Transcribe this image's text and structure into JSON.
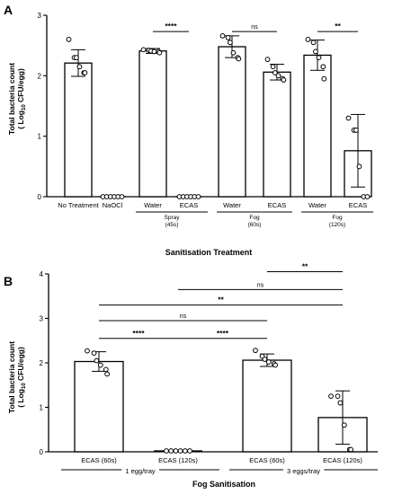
{
  "panels": [
    {
      "letter": "A",
      "ylabel_line1": "Total bacteria count",
      "ylabel_line2": "( Log",
      "ylabel_sub": "10",
      "ylabel_line2b": " CFU/egg)",
      "xlabel": "Sanitisation Treatment",
      "groups": [
        {
          "label": "Spray",
          "sub": "(45s)"
        },
        {
          "label": "Fog",
          "sub": "(60s)"
        },
        {
          "label": "Fog",
          "sub": "(120s)"
        }
      ]
    },
    {
      "letter": "B",
      "ylabel_line1": "Total bacteria count",
      "ylabel_line2": "( Log",
      "ylabel_sub": "10",
      "ylabel_line2b": " CFU/egg)",
      "xlabel": "Fog Sanitisation",
      "groups": [
        {
          "label": "1 egg/tray"
        },
        {
          "label": "3 eggs/tray"
        }
      ]
    }
  ],
  "chart_data": [
    {
      "type": "bar",
      "title": "",
      "xlabel": "Sanitisation Treatment",
      "ylabel": "Total bacteria count ( Log10 CFU/egg)",
      "ylim": [
        0,
        3
      ],
      "yticks": [
        "0",
        "1",
        "2",
        "3"
      ],
      "grid": false,
      "categories": [
        "No Treatment",
        "NaOCl",
        "Water",
        "ECAS",
        "Water",
        "ECAS",
        "Water",
        "ECAS"
      ],
      "values": [
        2.21,
        0.0,
        2.41,
        0.0,
        2.48,
        2.06,
        2.34,
        0.76
      ],
      "errors": [
        0.22,
        0.0,
        0.04,
        0.0,
        0.18,
        0.13,
        0.25,
        0.6
      ],
      "points": [
        [
          2.6,
          2.3,
          2.3,
          2.15,
          2.05,
          2.05
        ],
        [
          0,
          0,
          0,
          0,
          0,
          0
        ],
        [
          2.43,
          2.42,
          2.41,
          2.4,
          2.4,
          2.38
        ],
        [
          0,
          0,
          0,
          0,
          0,
          0
        ],
        [
          2.66,
          2.63,
          2.55,
          2.38,
          2.3,
          2.28
        ],
        [
          2.27,
          2.15,
          2.05,
          2.0,
          1.95,
          1.93
        ],
        [
          2.6,
          2.55,
          2.4,
          2.3,
          2.15,
          1.95
        ],
        [
          1.3,
          1.1,
          1.1,
          0.5,
          0.0,
          0.0
        ]
      ],
      "brackets": [
        {
          "from": 2,
          "to": 3,
          "y": 2.73,
          "label": "****"
        },
        {
          "from": 4,
          "to": 5,
          "y": 2.73,
          "label": "ns"
        },
        {
          "from": 6,
          "to": 7,
          "y": 2.73,
          "label": "**"
        }
      ]
    },
    {
      "type": "bar",
      "title": "",
      "xlabel": "Fog Sanitisation",
      "ylabel": "Total bacteria count ( Log10 CFU/egg)",
      "ylim": [
        0,
        4
      ],
      "yticks": [
        "0",
        "1",
        "2",
        "3",
        "4"
      ],
      "grid": false,
      "categories": [
        "ECAS (60s)",
        "ECAS (120s)",
        "ECAS (60s)",
        "ECAS (120s)"
      ],
      "values": [
        2.03,
        0.02,
        2.06,
        0.77
      ],
      "errors": [
        0.22,
        0.0,
        0.14,
        0.6
      ],
      "points": [
        [
          2.27,
          2.22,
          2.05,
          1.95,
          1.85,
          1.75
        ],
        [
          0.02,
          0.02,
          0.02,
          0.02,
          0.02,
          0.02
        ],
        [
          2.28,
          2.15,
          2.08,
          2.02,
          1.98,
          1.95
        ],
        [
          1.25,
          1.25,
          1.1,
          0.6,
          0.05,
          0.05
        ]
      ],
      "brackets": [
        {
          "from": 0,
          "to": 1,
          "y": 2.55,
          "label": "****"
        },
        {
          "from": 2,
          "to": 1,
          "y": 2.55,
          "label": "****"
        },
        {
          "from": 0,
          "to": 2,
          "y": 2.95,
          "label": "ns"
        },
        {
          "from": 0,
          "to": 3,
          "y": 3.3,
          "label": "**"
        },
        {
          "from": 1,
          "to": 3,
          "y": 3.65,
          "label": "ns"
        },
        {
          "from": 2,
          "to": 3,
          "y": 4.05,
          "label": "**"
        }
      ]
    }
  ]
}
